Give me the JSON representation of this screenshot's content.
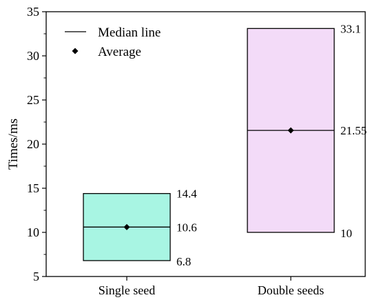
{
  "chart_data": {
    "type": "box",
    "ylabel": "Times/ms",
    "xlabel": "",
    "ylim": [
      5,
      35
    ],
    "yticks": [
      5,
      10,
      15,
      20,
      25,
      30,
      35
    ],
    "categories": [
      "Single seed",
      "Double seeds"
    ],
    "boxes": [
      {
        "category": "Single seed",
        "low": 6.8,
        "high": 14.4,
        "median": 10.6,
        "mean": 10.6,
        "low_label": "6.8",
        "high_label": "14.4",
        "median_label": "10.6",
        "color": "#a8f5e3"
      },
      {
        "category": "Double seeds",
        "low": 10,
        "high": 33.1,
        "median": 21.55,
        "mean": 21.55,
        "low_label": "10",
        "high_label": "33.1",
        "median_label": "21.55",
        "color": "#f3dbf8"
      }
    ],
    "legend": {
      "placement": "top-left",
      "items": [
        {
          "symbol": "line",
          "label": "Median line"
        },
        {
          "symbol": "diamond",
          "label": "Average"
        }
      ]
    }
  }
}
